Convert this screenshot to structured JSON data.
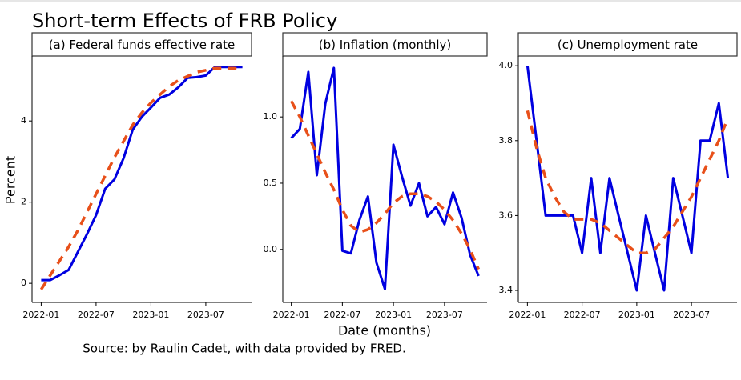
{
  "title": "Short-term Effects of FRB Policy",
  "y_label": "Percent",
  "x_label": "Date (months)",
  "source": "Source: by Raulin Cadet, with data provided by FRED.",
  "chart_data": [
    {
      "type": "line",
      "title": "(a) Federal funds effective rate",
      "x": [
        "2022-01",
        "2022-02",
        "2022-03",
        "2022-04",
        "2022-05",
        "2022-06",
        "2022-07",
        "2022-08",
        "2022-09",
        "2022-10",
        "2022-11",
        "2022-12",
        "2023-01",
        "2023-02",
        "2023-03",
        "2023-04",
        "2023-05",
        "2023-06",
        "2023-07",
        "2023-08",
        "2023-09",
        "2023-10",
        "2023-11"
      ],
      "series": [
        {
          "color": "#0000e0",
          "line_style": "solid",
          "values": [
            0.08,
            0.08,
            0.2,
            0.33,
            0.77,
            1.21,
            1.68,
            2.33,
            2.56,
            3.08,
            3.78,
            4.1,
            4.33,
            4.57,
            4.65,
            4.83,
            5.06,
            5.08,
            5.12,
            5.33,
            5.33,
            5.33,
            5.33
          ]
        },
        {
          "color": "#e8501a",
          "line_style": "dashed",
          "values": [
            -0.15,
            0.2,
            0.55,
            0.9,
            1.3,
            1.75,
            2.2,
            2.65,
            3.1,
            3.5,
            3.9,
            4.2,
            4.45,
            4.65,
            4.85,
            5.0,
            5.1,
            5.2,
            5.25,
            5.3,
            5.3,
            5.3,
            5.28
          ]
        }
      ],
      "xlim": [
        "2021-12",
        "2023-12"
      ],
      "xticks": [
        "2022-01",
        "2022-07",
        "2023-01",
        "2023-07"
      ],
      "ylim": [
        -0.47,
        5.6
      ],
      "yticks": [
        0,
        2,
        4
      ]
    },
    {
      "type": "line",
      "title": "(b) Inflation (monthly)",
      "x": [
        "2022-01",
        "2022-02",
        "2022-03",
        "2022-04",
        "2022-05",
        "2022-06",
        "2022-07",
        "2022-08",
        "2022-09",
        "2022-10",
        "2022-11",
        "2022-12",
        "2023-01",
        "2023-02",
        "2023-03",
        "2023-04",
        "2023-05",
        "2023-06",
        "2023-07",
        "2023-08",
        "2023-09",
        "2023-10",
        "2023-11"
      ],
      "series": [
        {
          "color": "#0000e0",
          "line_style": "solid",
          "values": [
            0.84,
            0.91,
            1.34,
            0.56,
            1.1,
            1.37,
            -0.01,
            -0.03,
            0.22,
            0.4,
            -0.1,
            -0.3,
            0.79,
            0.55,
            0.33,
            0.5,
            0.25,
            0.32,
            0.19,
            0.43,
            0.24,
            -0.04,
            -0.2
          ]
        },
        {
          "color": "#e8501a",
          "line_style": "dashed",
          "values": [
            1.12,
            1.0,
            0.86,
            0.72,
            0.58,
            0.45,
            0.3,
            0.18,
            0.13,
            0.15,
            0.2,
            0.27,
            0.35,
            0.4,
            0.42,
            0.42,
            0.4,
            0.36,
            0.3,
            0.22,
            0.12,
            0.0,
            -0.15
          ]
        }
      ],
      "xlim": [
        "2021-12",
        "2023-12"
      ],
      "xticks": [
        "2022-01",
        "2022-07",
        "2023-01",
        "2023-07"
      ],
      "ylim": [
        -0.4,
        1.46
      ],
      "yticks": [
        {
          "value": 0,
          "label": "0.0"
        },
        0.5,
        {
          "value": 1,
          "label": "1.0"
        }
      ]
    },
    {
      "type": "line",
      "title": "(c) Unemployment rate",
      "x": [
        "2022-01",
        "2022-02",
        "2022-03",
        "2022-04",
        "2022-05",
        "2022-06",
        "2022-07",
        "2022-08",
        "2022-09",
        "2022-10",
        "2022-11",
        "2022-12",
        "2023-01",
        "2023-02",
        "2023-03",
        "2023-04",
        "2023-05",
        "2023-06",
        "2023-07",
        "2023-08",
        "2023-09",
        "2023-10",
        "2023-11"
      ],
      "series": [
        {
          "color": "#0000e0",
          "line_style": "solid",
          "values": [
            4.0,
            3.8,
            3.6,
            3.6,
            3.6,
            3.6,
            3.5,
            3.7,
            3.5,
            3.7,
            3.6,
            3.5,
            3.4,
            3.6,
            3.5,
            3.4,
            3.7,
            3.6,
            3.5,
            3.8,
            3.8,
            3.9,
            3.7
          ]
        },
        {
          "color": "#e8501a",
          "line_style": "dashed",
          "values": [
            3.88,
            3.78,
            3.7,
            3.65,
            3.61,
            3.59,
            3.59,
            3.59,
            3.58,
            3.56,
            3.54,
            3.52,
            3.5,
            3.5,
            3.51,
            3.54,
            3.57,
            3.61,
            3.65,
            3.7,
            3.75,
            3.8,
            3.86
          ]
        }
      ],
      "xlim": [
        "2021-12",
        "2023-12"
      ],
      "xticks": [
        "2022-01",
        "2022-07",
        "2023-01",
        "2023-07"
      ],
      "ylim": [
        3.368,
        4.026
      ],
      "yticks": [
        3.4,
        3.6,
        3.8,
        {
          "value": 4,
          "label": "4.0"
        }
      ]
    }
  ]
}
